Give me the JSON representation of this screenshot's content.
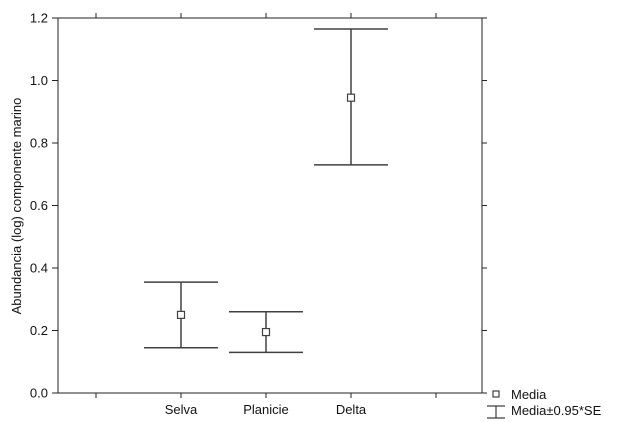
{
  "chart_data": {
    "type": "scatter",
    "categories": [
      "Selva",
      "Planicie",
      "Delta"
    ],
    "series": [
      {
        "name": "Media",
        "values": [
          0.25,
          0.195,
          0.945
        ],
        "error_low": [
          0.145,
          0.13,
          0.73
        ],
        "error_high": [
          0.355,
          0.26,
          1.165
        ]
      }
    ],
    "error_label": "Media±0.95*SE",
    "title": "",
    "xlabel": "",
    "ylabel": "Abundancia (log) componente marino",
    "ylim": [
      0.0,
      1.2
    ],
    "yticks": [
      0.0,
      0.2,
      0.4,
      0.6,
      0.8,
      1.0,
      1.2
    ],
    "ytick_labels": [
      "0.0",
      "0.2",
      "0.4",
      "0.6",
      "0.8",
      "1.0",
      "1.2"
    ],
    "grid": false,
    "legend_position": "bottom-right",
    "colors": {
      "line": "#404040",
      "axis": "#222222",
      "marker_fill": "#ffffff"
    }
  }
}
